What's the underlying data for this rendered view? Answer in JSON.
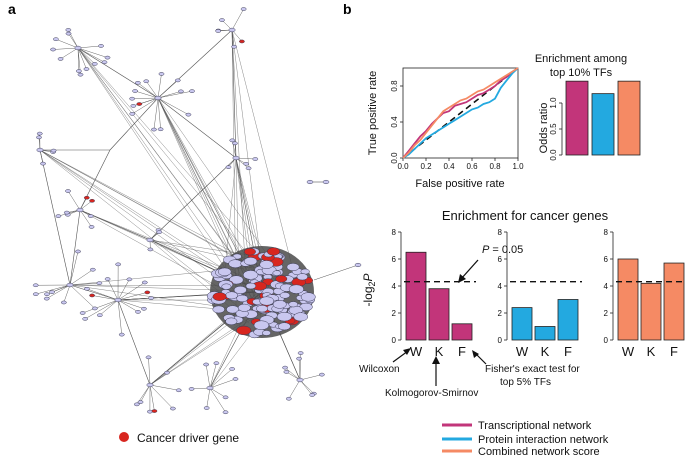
{
  "panel_a_label": "a",
  "panel_b_label": "b",
  "network_legend": {
    "label": "Cancer driver gene",
    "color": "#d8261f"
  },
  "colors": {
    "transcriptional": "#c2357a",
    "protein": "#23a9e0",
    "combined": "#f58a64",
    "node": "#c9c7ef",
    "node_edge": "#3b3b55",
    "edge": "#555555"
  },
  "legend": {
    "transcriptional": "Transcriptional network",
    "protein": "Protein interaction network",
    "combined": "Combined network score"
  },
  "annotations": {
    "pvalue": "P = 0.05",
    "wilcoxon": "Wilcoxon",
    "ks": "Kolmogorov-Smirnov",
    "fisher_line1": "Fisher's exact test for",
    "fisher_line2": "top 5% TFs"
  },
  "chart_data": [
    {
      "type": "line",
      "title": "",
      "xlabel": "False positive rate",
      "ylabel": "True positive rate",
      "xlim": [
        0,
        1
      ],
      "ylim": [
        0,
        1
      ],
      "x_ticks": [
        "0.0",
        "0.2",
        "0.4",
        "0.6",
        "0.8",
        "1.0"
      ],
      "y_ticks": [
        "0.0",
        "0.4",
        "0.8"
      ],
      "diagonal": "dashed",
      "series": [
        {
          "name": "Transcriptional network",
          "x": [
            0,
            0.05,
            0.1,
            0.15,
            0.2,
            0.25,
            0.3,
            0.35,
            0.4,
            0.45,
            0.5,
            0.55,
            0.6,
            0.65,
            0.7,
            0.75,
            0.8,
            0.85,
            0.9,
            0.95,
            1.0
          ],
          "y": [
            0,
            0.08,
            0.16,
            0.24,
            0.3,
            0.38,
            0.44,
            0.5,
            0.52,
            0.58,
            0.6,
            0.62,
            0.66,
            0.7,
            0.72,
            0.76,
            0.8,
            0.86,
            0.9,
            0.95,
            1.0
          ]
        },
        {
          "name": "Protein interaction network",
          "x": [
            0,
            0.05,
            0.1,
            0.15,
            0.2,
            0.25,
            0.3,
            0.35,
            0.4,
            0.45,
            0.5,
            0.55,
            0.6,
            0.65,
            0.7,
            0.75,
            0.8,
            0.85,
            0.9,
            0.95,
            1.0
          ],
          "y": [
            0,
            0.04,
            0.1,
            0.16,
            0.22,
            0.26,
            0.3,
            0.34,
            0.38,
            0.42,
            0.46,
            0.5,
            0.54,
            0.56,
            0.6,
            0.62,
            0.66,
            0.78,
            0.86,
            0.94,
            1.0
          ]
        },
        {
          "name": "Combined network score",
          "x": [
            0,
            0.05,
            0.1,
            0.15,
            0.2,
            0.25,
            0.3,
            0.35,
            0.4,
            0.45,
            0.5,
            0.55,
            0.6,
            0.65,
            0.7,
            0.75,
            0.8,
            0.85,
            0.9,
            0.95,
            1.0
          ],
          "y": [
            0,
            0.06,
            0.14,
            0.2,
            0.28,
            0.36,
            0.44,
            0.52,
            0.56,
            0.6,
            0.64,
            0.66,
            0.7,
            0.74,
            0.76,
            0.8,
            0.84,
            0.88,
            0.92,
            0.96,
            1.0
          ]
        }
      ]
    },
    {
      "type": "bar",
      "title": "Enrichment among top 10% TFs",
      "xlabel": "",
      "ylabel": "Odds ratio",
      "ylim": [
        0,
        1.5
      ],
      "y_ticks": [
        "0.0",
        "0.5",
        "1.0"
      ],
      "categories": [
        "Transcriptional network",
        "Protein interaction network",
        "Combined network score"
      ],
      "values": [
        1.42,
        1.18,
        1.42
      ]
    },
    {
      "type": "bar",
      "title": "Enrichment for cancer genes",
      "ylabel": "-log2P",
      "ylim": [
        0,
        8
      ],
      "y_ticks": [
        "0",
        "2",
        "4",
        "6",
        "8"
      ],
      "reference_line": 4.32,
      "categories": [
        "W",
        "K",
        "F"
      ],
      "series": [
        {
          "name": "Transcriptional network",
          "values": [
            6.5,
            3.8,
            1.2
          ]
        },
        {
          "name": "Protein interaction network",
          "values": [
            2.4,
            1.0,
            3.0
          ]
        },
        {
          "name": "Combined network score",
          "values": [
            6.0,
            4.2,
            5.7
          ]
        }
      ]
    }
  ]
}
